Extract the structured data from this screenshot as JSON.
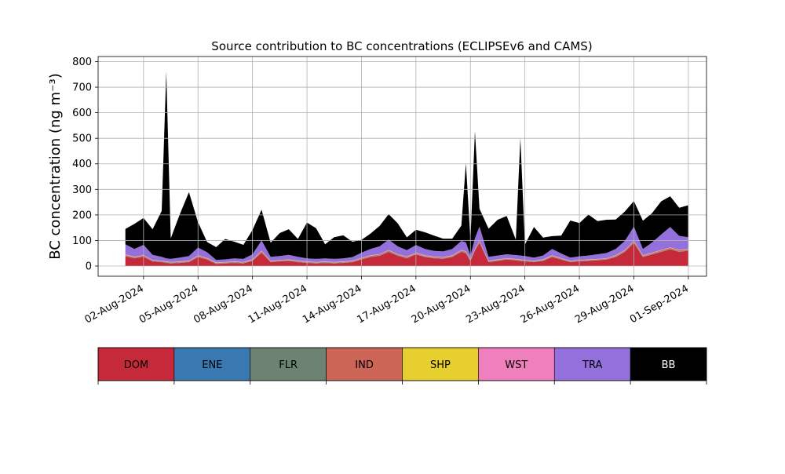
{
  "chart_data": {
    "type": "area",
    "stacked": true,
    "title": "Source contribution to BC concentrations (ECLIPSEv6 and CAMS)",
    "xlabel": "",
    "ylabel": "BC concentration (ng m⁻³)",
    "ylim": [
      -40,
      820
    ],
    "xlim": [
      "2024-07-30T12:00",
      "2024-09-02T00:00"
    ],
    "grid": true,
    "yticks": [
      0,
      100,
      200,
      300,
      400,
      500,
      600,
      700,
      800
    ],
    "xticks": [
      "2024-08-02",
      "2024-08-05",
      "2024-08-08",
      "2024-08-11",
      "2024-08-14",
      "2024-08-17",
      "2024-08-20",
      "2024-08-23",
      "2024-08-26",
      "2024-08-29",
      "2024-09-01"
    ],
    "xtick_labels": [
      "02-Aug-2024",
      "05-Aug-2024",
      "08-Aug-2024",
      "11-Aug-2024",
      "14-Aug-2024",
      "17-Aug-2024",
      "20-Aug-2024",
      "23-Aug-2024",
      "26-Aug-2024",
      "29-Aug-2024",
      "01-Sep-2024"
    ],
    "x": [
      "2024-08-01T00:00",
      "2024-08-01T12:00",
      "2024-08-02T00:00",
      "2024-08-02T12:00",
      "2024-08-03T00:00",
      "2024-08-03T06:00",
      "2024-08-03T12:00",
      "2024-08-04T00:00",
      "2024-08-04T12:00",
      "2024-08-05T00:00",
      "2024-08-05T12:00",
      "2024-08-06T00:00",
      "2024-08-06T12:00",
      "2024-08-07T00:00",
      "2024-08-07T12:00",
      "2024-08-08T00:00",
      "2024-08-08T12:00",
      "2024-08-09T00:00",
      "2024-08-09T12:00",
      "2024-08-10T00:00",
      "2024-08-10T12:00",
      "2024-08-11T00:00",
      "2024-08-11T12:00",
      "2024-08-12T00:00",
      "2024-08-12T12:00",
      "2024-08-13T00:00",
      "2024-08-13T12:00",
      "2024-08-14T00:00",
      "2024-08-14T12:00",
      "2024-08-15T00:00",
      "2024-08-15T12:00",
      "2024-08-16T00:00",
      "2024-08-16T12:00",
      "2024-08-17T00:00",
      "2024-08-17T12:00",
      "2024-08-18T00:00",
      "2024-08-18T12:00",
      "2024-08-19T00:00",
      "2024-08-19T12:00",
      "2024-08-19T18:00",
      "2024-08-20T00:00",
      "2024-08-20T06:00",
      "2024-08-20T12:00",
      "2024-08-21T00:00",
      "2024-08-21T12:00",
      "2024-08-22T00:00",
      "2024-08-22T12:00",
      "2024-08-22T18:00",
      "2024-08-23T00:00",
      "2024-08-23T12:00",
      "2024-08-24T00:00",
      "2024-08-24T12:00",
      "2024-08-25T00:00",
      "2024-08-25T12:00",
      "2024-08-26T00:00",
      "2024-08-26T12:00",
      "2024-08-27T00:00",
      "2024-08-27T12:00",
      "2024-08-28T00:00",
      "2024-08-28T12:00",
      "2024-08-29T00:00",
      "2024-08-29T12:00",
      "2024-08-30T00:00",
      "2024-08-30T12:00",
      "2024-08-31T00:00",
      "2024-08-31T12:00",
      "2024-09-01T00:00"
    ],
    "series": [
      {
        "name": "DOM",
        "color": "#c62a3a",
        "values": [
          38,
          30,
          36,
          18,
          15,
          12,
          10,
          12,
          15,
          35,
          25,
          8,
          10,
          12,
          10,
          20,
          52,
          15,
          18,
          20,
          15,
          12,
          10,
          12,
          10,
          12,
          15,
          25,
          35,
          40,
          55,
          40,
          30,
          45,
          35,
          30,
          28,
          35,
          55,
          50,
          20,
          60,
          90,
          15,
          20,
          25,
          22,
          20,
          18,
          15,
          20,
          35,
          25,
          15,
          18,
          20,
          22,
          25,
          35,
          55,
          90,
          35,
          45,
          55,
          65,
          55,
          60
        ]
      },
      {
        "name": "ENE",
        "color": "#3a78b1",
        "values": [
          1,
          1,
          1,
          1,
          1,
          1,
          1,
          1,
          1,
          1,
          1,
          1,
          1,
          1,
          1,
          1,
          1,
          1,
          1,
          1,
          1,
          1,
          1,
          1,
          1,
          1,
          1,
          1,
          1,
          1,
          1,
          1,
          1,
          1,
          1,
          1,
          1,
          1,
          1,
          1,
          1,
          1,
          1,
          1,
          1,
          1,
          1,
          1,
          1,
          1,
          1,
          1,
          1,
          1,
          1,
          1,
          1,
          1,
          1,
          1,
          1,
          1,
          1,
          1,
          1,
          1,
          1
        ]
      },
      {
        "name": "FLR",
        "color": "#6e8272",
        "values": [
          1,
          1,
          1,
          1,
          1,
          1,
          1,
          1,
          1,
          1,
          1,
          1,
          1,
          1,
          1,
          1,
          1,
          1,
          1,
          1,
          1,
          1,
          1,
          1,
          1,
          1,
          1,
          1,
          1,
          1,
          1,
          1,
          1,
          1,
          1,
          1,
          1,
          1,
          1,
          1,
          1,
          1,
          1,
          1,
          1,
          1,
          1,
          1,
          1,
          1,
          1,
          1,
          1,
          1,
          1,
          1,
          1,
          1,
          1,
          1,
          1,
          1,
          1,
          1,
          1,
          1,
          1
        ]
      },
      {
        "name": "IND",
        "color": "#cc6555",
        "values": [
          3,
          3,
          3,
          2,
          2,
          2,
          2,
          2,
          2,
          3,
          3,
          2,
          2,
          2,
          2,
          2,
          4,
          2,
          2,
          2,
          2,
          2,
          2,
          2,
          2,
          2,
          2,
          3,
          3,
          3,
          4,
          3,
          3,
          3,
          3,
          3,
          3,
          3,
          4,
          4,
          2,
          4,
          5,
          2,
          2,
          2,
          2,
          2,
          2,
          2,
          2,
          3,
          2,
          2,
          2,
          2,
          2,
          2,
          3,
          4,
          5,
          3,
          3,
          4,
          4,
          4,
          4
        ]
      },
      {
        "name": "SHP",
        "color": "#e6cf2e",
        "values": [
          1,
          1,
          1,
          1,
          1,
          1,
          1,
          1,
          1,
          1,
          1,
          1,
          1,
          1,
          1,
          1,
          1,
          1,
          1,
          1,
          1,
          1,
          1,
          1,
          1,
          1,
          1,
          1,
          1,
          1,
          1,
          1,
          1,
          1,
          1,
          1,
          1,
          1,
          1,
          1,
          1,
          1,
          1,
          1,
          1,
          1,
          1,
          1,
          1,
          1,
          1,
          1,
          1,
          1,
          1,
          1,
          1,
          1,
          1,
          1,
          1,
          1,
          1,
          1,
          1,
          1,
          1
        ]
      },
      {
        "name": "WST",
        "color": "#f07fbd",
        "values": [
          1,
          1,
          1,
          1,
          1,
          1,
          1,
          1,
          1,
          1,
          1,
          1,
          1,
          1,
          1,
          1,
          1,
          1,
          1,
          1,
          1,
          1,
          1,
          1,
          1,
          1,
          1,
          1,
          1,
          1,
          1,
          1,
          1,
          1,
          1,
          1,
          1,
          1,
          1,
          1,
          1,
          1,
          1,
          1,
          1,
          1,
          1,
          1,
          1,
          1,
          1,
          1,
          1,
          1,
          1,
          1,
          1,
          1,
          1,
          1,
          1,
          1,
          1,
          1,
          1,
          1,
          1
        ]
      },
      {
        "name": "TRA",
        "color": "#9370db",
        "values": [
          40,
          30,
          40,
          20,
          15,
          12,
          12,
          15,
          18,
          30,
          22,
          10,
          10,
          12,
          12,
          20,
          40,
          15,
          15,
          18,
          15,
          12,
          12,
          12,
          12,
          12,
          14,
          20,
          25,
          30,
          40,
          30,
          25,
          30,
          25,
          22,
          22,
          25,
          35,
          35,
          15,
          40,
          55,
          15,
          15,
          15,
          15,
          15,
          15,
          12,
          15,
          25,
          18,
          12,
          14,
          15,
          18,
          20,
          25,
          35,
          55,
          25,
          40,
          60,
          80,
          55,
          45
        ]
      },
      {
        "name": "BB",
        "color": "#000000",
        "values": [
          60,
          98,
          105,
          100,
          180,
          730,
          80,
          170,
          250,
          100,
          40,
          50,
          80,
          65,
          55,
          95,
          120,
          55,
          90,
          100,
          70,
          140,
          120,
          55,
          85,
          90,
          60,
          50,
          60,
          80,
          100,
          90,
          50,
          60,
          65,
          60,
          50,
          40,
          60,
          310,
          60,
          420,
          70,
          110,
          140,
          150,
          60,
          460,
          45,
          120,
          70,
          50,
          70,
          145,
          130,
          160,
          130,
          130,
          115,
          115,
          100,
          110,
          115,
          130,
          120,
          110,
          125
        ]
      }
    ]
  }
}
